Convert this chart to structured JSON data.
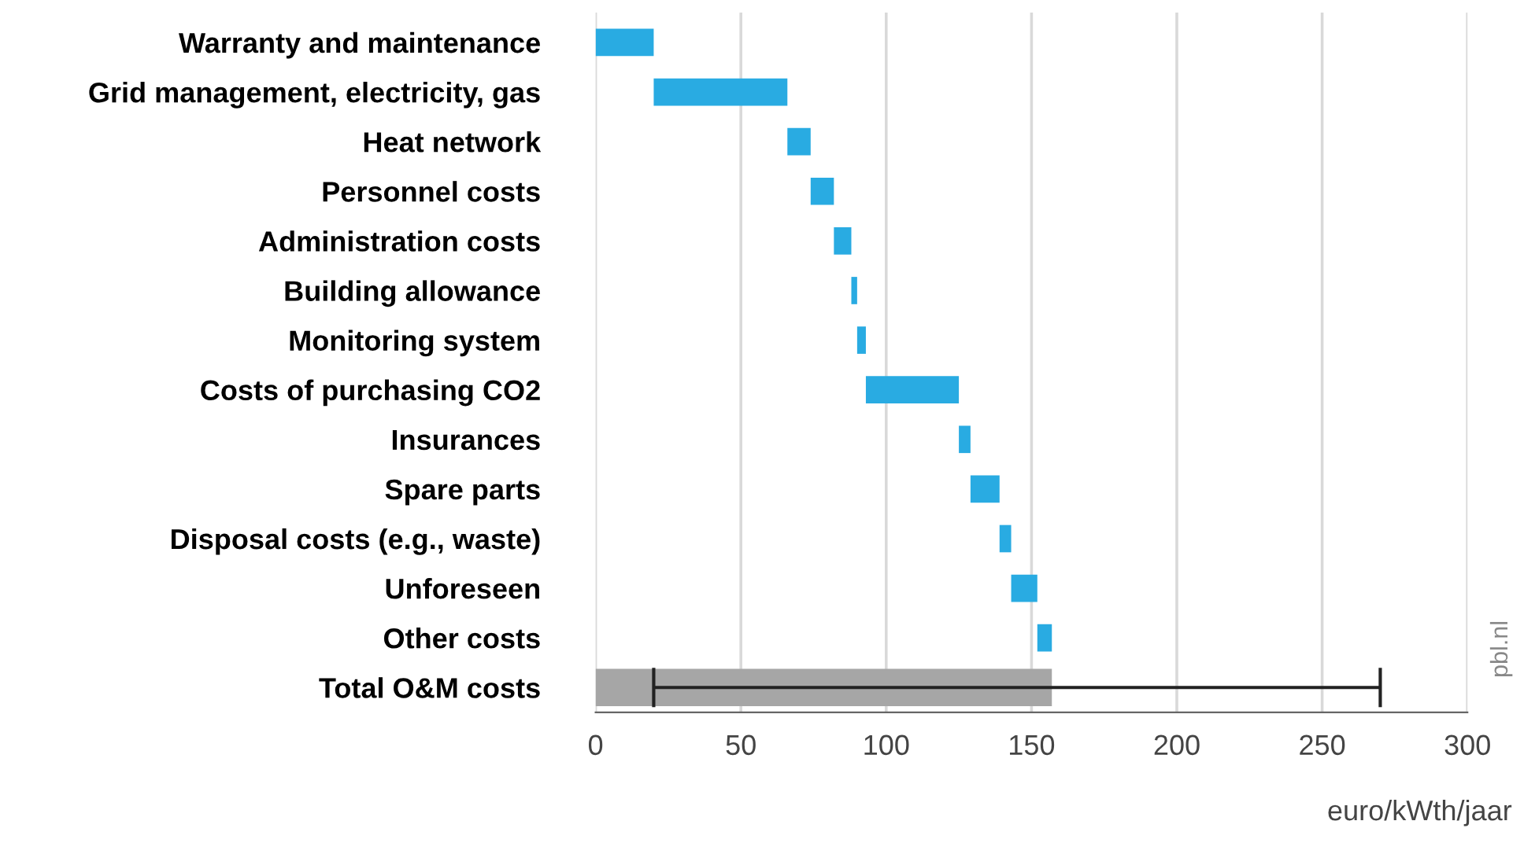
{
  "chart_data": {
    "type": "bar",
    "orientation": "horizontal",
    "xlabel": "euro/kWth/jaar",
    "categories": [
      "Warranty and maintenance",
      "Grid management, electricity, gas",
      "Heat network",
      "Personnel costs",
      "Administration costs",
      "Building allowance",
      "Monitoring system",
      "Costs of purchasing CO2",
      "Insurances",
      "Spare parts",
      "Disposal costs (e.g., waste)",
      "Unforeseen",
      "Other costs",
      "Total O&M costs"
    ],
    "base": [
      0,
      20,
      66,
      74,
      82,
      88,
      90,
      93,
      125,
      129,
      139,
      143,
      152,
      0
    ],
    "values": [
      20,
      46,
      8,
      8,
      6,
      2,
      3,
      32,
      4,
      10,
      4,
      9,
      5,
      157
    ],
    "errors": [
      null,
      null,
      null,
      null,
      null,
      null,
      null,
      null,
      null,
      null,
      null,
      null,
      null,
      [
        20,
        270
      ]
    ],
    "colors": [
      "#29abe2",
      "#29abe2",
      "#29abe2",
      "#29abe2",
      "#29abe2",
      "#29abe2",
      "#29abe2",
      "#29abe2",
      "#29abe2",
      "#29abe2",
      "#29abe2",
      "#29abe2",
      "#29abe2",
      "#a6a6a6"
    ],
    "xlim": [
      0,
      300
    ],
    "xticks": [
      0,
      50,
      100,
      150,
      200,
      250,
      300
    ],
    "grid": "x",
    "annotations": [
      "pbl.nl"
    ]
  }
}
